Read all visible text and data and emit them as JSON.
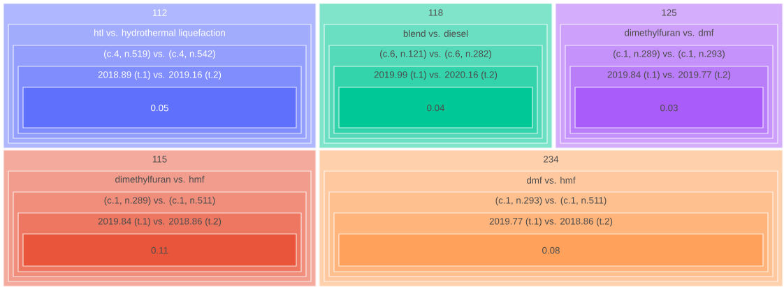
{
  "chart_data": {
    "type": "other",
    "categories": [
      null,
      null,
      null,
      null,
      null
    ],
    "annotations": [
      "112",
      "htl vs. hydrothermal liquefaction",
      "(c.4, n.519) vs. (c.4, n.542)",
      "2018.89 (t.1) vs. 2019.16 (t.2)",
      "118",
      "blend vs. diesel",
      "(c.6, n.121) vs. (c.6, n.282)",
      "2019.99 (t.1) vs. 2020.16 (t.2)",
      "125",
      "dimethylfuran vs. dmf",
      "(c.1, n.289) vs. (c.1, n.293)",
      "2019.84 (t.1) vs. 2019.77 (t.2)",
      "115",
      "dimethylfuran vs. hmf",
      "(c.1, n.289) vs. (c.1, n.511)",
      "2019.84 (t.1) vs. 2018.86 (t.2)",
      "234",
      "dmf vs. hmf",
      "(c.1, n.293) vs. (c.1, n.511)",
      "2019.77 (t.1) vs. 2018.86 (t.2)"
    ],
    "values": [
      0.05,
      0.04,
      0.03,
      0.11,
      0.08
    ],
    "colors": [
      "#5f70fc",
      "#00c896",
      "#a95cf9",
      "#e8553a",
      "#ffa15a"
    ],
    "data_labels": true
  }
}
